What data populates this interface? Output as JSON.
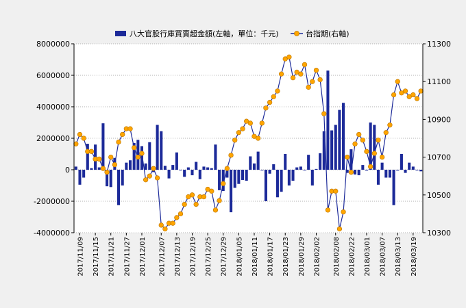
{
  "chart_data": {
    "type": "bar+line",
    "legend": {
      "position": "top",
      "bar_label": "八大官股行庫買賣超金額(左軸，單位：千元)",
      "line_label": "台指期(右軸)"
    },
    "left_axis": {
      "range": [
        -4000000,
        8000000
      ],
      "ticks": [
        "-4000000",
        "-2000000",
        "0",
        "2000000",
        "4000000",
        "6000000",
        "8000000"
      ]
    },
    "right_axis": {
      "range": [
        10300,
        11300
      ],
      "ticks": [
        "10300",
        "10500",
        "10700",
        "10900",
        "11100",
        "11300"
      ]
    },
    "x_tick_labels": [
      "2017/11/09",
      "2017/11/15",
      "2017/11/21",
      "2017/11/27",
      "2017/12/01",
      "2017/12/07",
      "2017/12/13",
      "2017/12/19",
      "2017/12/25",
      "2017/12/29",
      "2018/01/05",
      "2018/01/11",
      "2018/01/17",
      "2018/01/23",
      "2018/01/29",
      "2018/02/02",
      "2018/02/08",
      "2018/02/22",
      "2018/03/01",
      "2018/03/07",
      "2018/03/13",
      "2018/03/19"
    ],
    "series": [
      {
        "name": "八大官股行庫買賣超金額(左軸，單位：千元)",
        "type": "bar",
        "axis": "left",
        "color": "#1c2a99",
        "values": [
          200000,
          -950000,
          -500000,
          1650000,
          100000,
          1600000,
          150000,
          2950000,
          -1050000,
          -1100000,
          750000,
          -2250000,
          -1000000,
          450000,
          600000,
          1700000,
          1900000,
          1500000,
          400000,
          1750000,
          -150000,
          2850000,
          2450000,
          250000,
          -550000,
          300000,
          1100000,
          0,
          -450000,
          150000,
          -350000,
          500000,
          -600000,
          200000,
          150000,
          100000,
          1600000,
          -1300000,
          -1350000,
          -500000,
          -2700000,
          -1150000,
          -900000,
          -650000,
          -700000,
          850000,
          400000,
          1150000,
          0,
          -2000000,
          -250000,
          350000,
          -1750000,
          -1400000,
          1000000,
          -1000000,
          -700000,
          150000,
          200000,
          0,
          950000,
          -1000000,
          50000,
          1050000,
          2450000,
          6300000,
          2500000,
          2850000,
          3800000,
          4250000,
          -200000,
          1300000,
          -300000,
          -350000,
          300000,
          -50000,
          3000000,
          2850000,
          -950000,
          450000,
          -500000,
          -500000,
          -2250000,
          -50000,
          1000000,
          -200000,
          450000,
          200000,
          0,
          -100000
        ],
        "labels_note": "values approximated from bar heights"
      },
      {
        "name": "台指期(右軸)",
        "type": "line",
        "axis": "right",
        "color": "#ffa500",
        "values": [
          10770,
          10820,
          10800,
          10730,
          10730,
          10690,
          10690,
          10640,
          10620,
          10700,
          10660,
          10780,
          10820,
          10850,
          10850,
          10750,
          10700,
          10720,
          10580,
          10600,
          10640,
          10590,
          10340,
          10320,
          10350,
          10350,
          10380,
          10400,
          10450,
          10490,
          10500,
          10450,
          10490,
          10490,
          10530,
          10520,
          10420,
          10470,
          10560,
          10640,
          10710,
          10790,
          10830,
          10850,
          10890,
          10880,
          10810,
          10800,
          10880,
          10960,
          10990,
          11020,
          11050,
          11140,
          11220,
          11230,
          11120,
          11150,
          11140,
          11190,
          11070,
          11100,
          11160,
          11110,
          10930,
          10420,
          10520,
          10520,
          10320,
          10410,
          10700,
          10620,
          10770,
          10820,
          10790,
          10730,
          10650,
          10720,
          10790,
          10700,
          10830,
          10870,
          11030,
          11100,
          11040,
          11050,
          11020,
          11030,
          11010,
          11050
        ]
      }
    ]
  }
}
